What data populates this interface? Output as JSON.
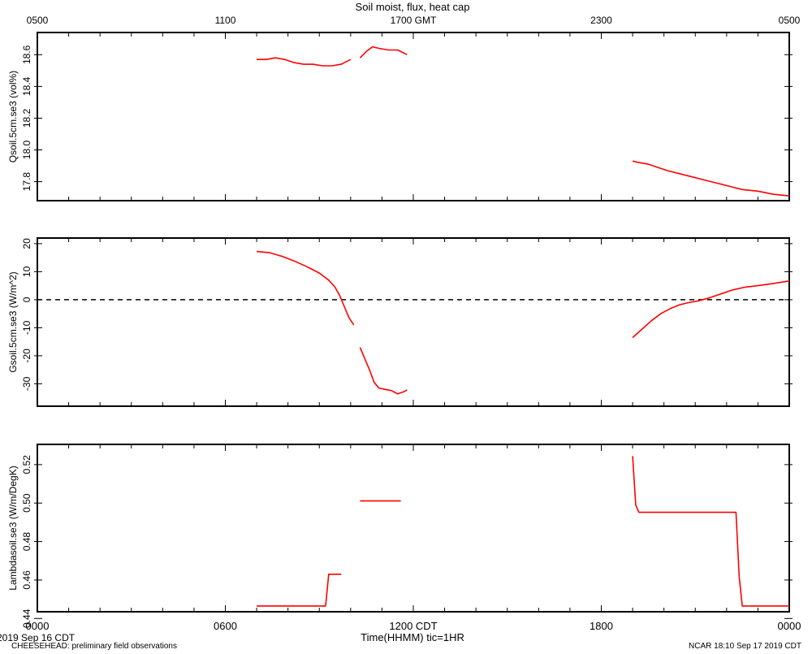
{
  "title": "Soil moist, flux, heat cap",
  "top_axis": {
    "labels": [
      "0500",
      "1100",
      "1700 GMT",
      "2300",
      "0500"
    ]
  },
  "bottom_axis": {
    "labels": [
      "0000",
      "0600",
      "1200 CDT",
      "1800",
      "0000"
    ],
    "xlabel": "Time(HHMM)  tic=1HR"
  },
  "footer": {
    "date": "2019 Sep 16 CDT",
    "project": "CHEESEHEAD: preliminary field observations",
    "credit": "NCAR 18:10 Sep 17 2019 CDT"
  },
  "colors": {
    "series": "#ff0000",
    "axis": "#000000",
    "zero_line": "#000000"
  },
  "chart_data": [
    {
      "type": "line",
      "panel": "top",
      "ylabel": "Qsoil.5cm.se3 (vol%)",
      "xlim": [
        0,
        24
      ],
      "ylim": [
        17.68,
        18.74
      ],
      "yticks": [
        "17.8",
        "18.0",
        "18.2",
        "18.4",
        "18.6"
      ],
      "yticks_values": [
        17.8,
        18.0,
        18.2,
        18.4,
        18.6
      ],
      "series": [
        {
          "segments": [
            [
              [
                7.0,
                18.57
              ],
              [
                7.3,
                18.57
              ],
              [
                7.6,
                18.58
              ],
              [
                7.9,
                18.57
              ],
              [
                8.2,
                18.55
              ],
              [
                8.5,
                18.54
              ],
              [
                8.8,
                18.54
              ],
              [
                9.1,
                18.53
              ],
              [
                9.4,
                18.53
              ],
              [
                9.7,
                18.54
              ],
              [
                10.0,
                18.57
              ]
            ],
            [
              [
                10.3,
                18.58
              ],
              [
                10.5,
                18.62
              ],
              [
                10.7,
                18.65
              ],
              [
                10.9,
                18.64
              ],
              [
                11.2,
                18.63
              ],
              [
                11.5,
                18.63
              ],
              [
                11.8,
                18.6
              ]
            ],
            [
              [
                19.0,
                17.93
              ],
              [
                19.2,
                17.92
              ],
              [
                19.5,
                17.91
              ],
              [
                19.8,
                17.89
              ],
              [
                20.1,
                17.87
              ],
              [
                20.5,
                17.85
              ],
              [
                20.9,
                17.83
              ],
              [
                21.3,
                17.81
              ],
              [
                21.7,
                17.79
              ],
              [
                22.1,
                17.77
              ],
              [
                22.5,
                17.75
              ],
              [
                23.0,
                17.74
              ],
              [
                23.5,
                17.72
              ],
              [
                24.0,
                17.71
              ]
            ]
          ]
        }
      ]
    },
    {
      "type": "line",
      "panel": "middle",
      "ylabel": "Gsoil.5cm.se3 (W/m^2)",
      "xlim": [
        0,
        24
      ],
      "ylim": [
        -38,
        22
      ],
      "yticks": [
        "-30",
        "-20",
        "-10",
        "0",
        "10",
        "20"
      ],
      "yticks_values": [
        -30,
        -20,
        -10,
        0,
        10,
        20
      ],
      "zero_line": true,
      "series": [
        {
          "segments": [
            [
              [
                7.0,
                17.2
              ],
              [
                7.4,
                16.8
              ],
              [
                7.8,
                15.5
              ],
              [
                8.2,
                13.8
              ],
              [
                8.6,
                11.8
              ],
              [
                9.0,
                9.5
              ],
              [
                9.3,
                7.0
              ],
              [
                9.5,
                4.5
              ],
              [
                9.65,
                1.5
              ],
              [
                9.8,
                -2.5
              ],
              [
                9.95,
                -6.5
              ],
              [
                10.1,
                -9.0
              ]
            ],
            [
              [
                10.3,
                -17.0
              ],
              [
                10.45,
                -21.0
              ],
              [
                10.6,
                -25.0
              ],
              [
                10.75,
                -29.5
              ],
              [
                10.9,
                -31.5
              ],
              [
                11.1,
                -32.0
              ],
              [
                11.3,
                -32.4
              ],
              [
                11.5,
                -33.6
              ],
              [
                11.7,
                -32.8
              ],
              [
                11.8,
                -32.2
              ]
            ],
            [
              [
                19.0,
                -13.5
              ],
              [
                19.3,
                -10.5
              ],
              [
                19.6,
                -7.5
              ],
              [
                19.9,
                -5.0
              ],
              [
                20.2,
                -3.2
              ],
              [
                20.5,
                -1.8
              ],
              [
                20.8,
                -1.0
              ],
              [
                21.1,
                -0.4
              ],
              [
                21.4,
                0.5
              ],
              [
                21.8,
                2.0
              ],
              [
                22.2,
                3.5
              ],
              [
                22.6,
                4.5
              ],
              [
                23.0,
                5.0
              ],
              [
                23.5,
                5.8
              ],
              [
                24.0,
                6.7
              ]
            ]
          ]
        }
      ]
    },
    {
      "type": "line",
      "panel": "bottom",
      "ylabel": "Lambdasoil.se3 (W/m/DegK)",
      "xlim": [
        0,
        24
      ],
      "ylim": [
        0.4435,
        0.5305
      ],
      "yticks": [
        "0.44",
        "0.46",
        "0.48",
        "0.50",
        "0.52"
      ],
      "yticks_values": [
        0.44,
        0.46,
        0.48,
        0.5,
        0.52
      ],
      "series": [
        {
          "segments": [
            [
              [
                7.0,
                0.4465
              ],
              [
                9.2,
                0.4465
              ],
              [
                9.3,
                0.463
              ],
              [
                9.7,
                0.463
              ]
            ],
            [
              [
                10.3,
                0.5011
              ],
              [
                11.6,
                0.5011
              ]
            ],
            [
              [
                19.0,
                0.5244
              ],
              [
                19.1,
                0.499
              ],
              [
                19.2,
                0.4952
              ],
              [
                22.3,
                0.4952
              ],
              [
                22.4,
                0.462
              ],
              [
                22.5,
                0.4465
              ],
              [
                24.0,
                0.4465
              ]
            ]
          ]
        }
      ]
    }
  ]
}
